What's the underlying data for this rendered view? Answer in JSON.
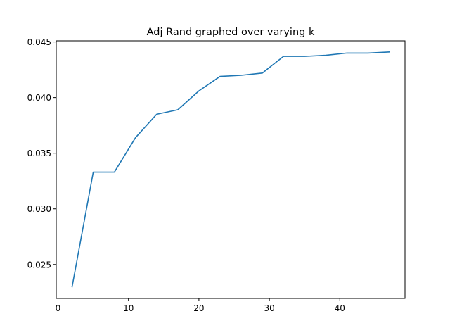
{
  "chart_data": {
    "type": "line",
    "title": "Adj Rand graphed over varying k",
    "xlabel": "",
    "ylabel": "",
    "xlim": [
      -0.25,
      49.25
    ],
    "ylim": [
      0.02195,
      0.0451
    ],
    "x_ticks": [
      0,
      10,
      20,
      30,
      40
    ],
    "x_tick_labels": [
      "0",
      "10",
      "20",
      "30",
      "40"
    ],
    "y_ticks": [
      0.025,
      0.03,
      0.035,
      0.04,
      0.045
    ],
    "y_tick_labels": [
      "0.025",
      "0.030",
      "0.035",
      "0.040",
      "0.045"
    ],
    "grid": false,
    "legend": "none",
    "series": [
      {
        "color": "#1f77b4",
        "x": [
          2,
          5,
          8,
          11,
          14,
          17,
          20,
          23,
          26,
          29,
          32,
          35,
          38,
          41,
          44,
          47
        ],
        "y": [
          0.023,
          0.0333,
          0.0333,
          0.0364,
          0.0385,
          0.0389,
          0.0406,
          0.0419,
          0.042,
          0.0422,
          0.0437,
          0.0437,
          0.0438,
          0.044,
          0.044,
          0.0441
        ]
      }
    ]
  }
}
